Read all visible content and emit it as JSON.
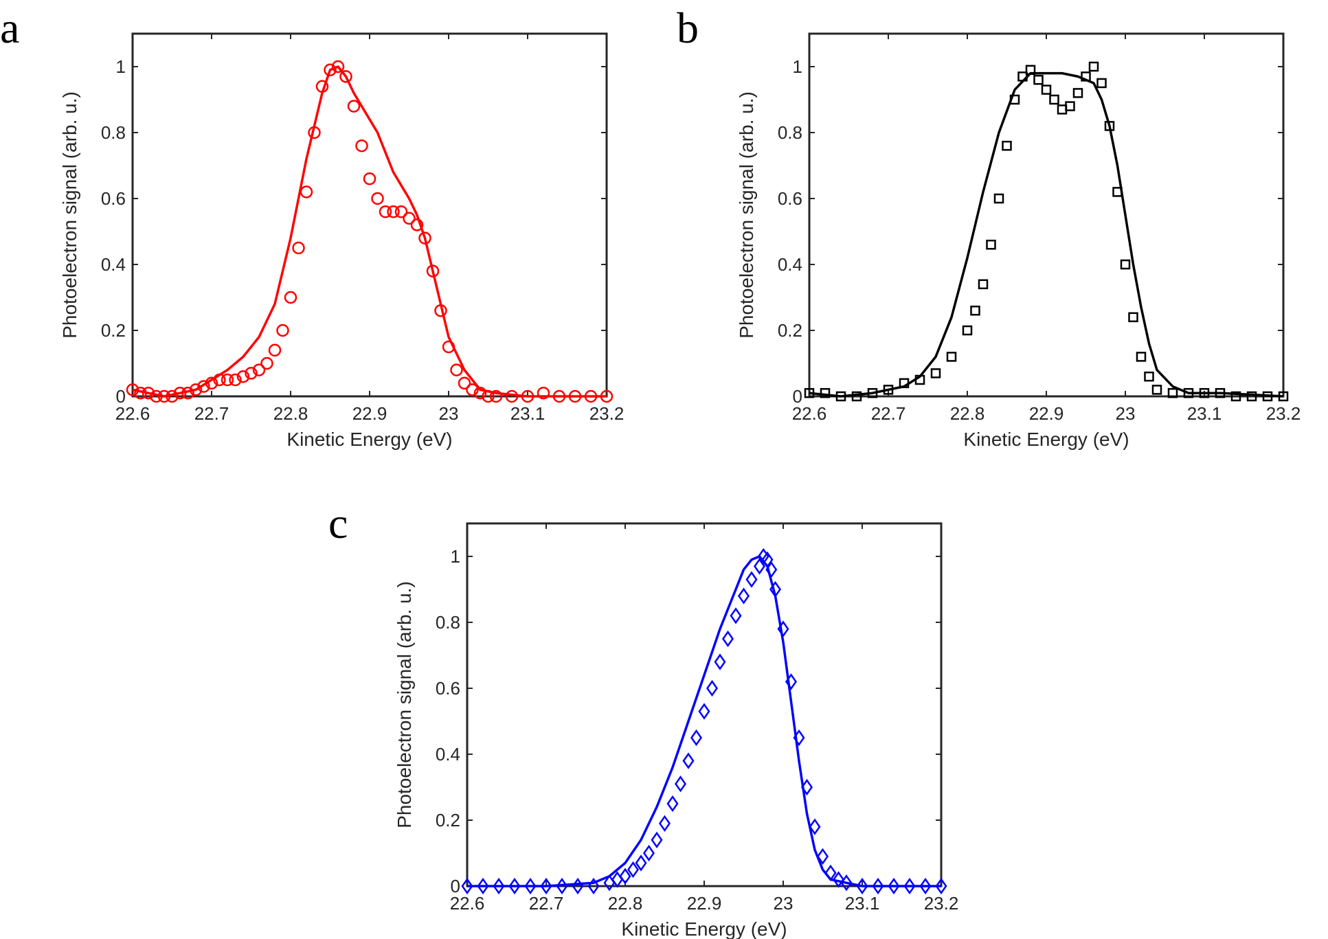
{
  "figure": {
    "panels": [
      "a",
      "b",
      "c"
    ]
  },
  "chart_data": [
    {
      "panel": "a",
      "type": "line",
      "color": "#ff0000",
      "marker": "circle",
      "xlabel": "Kinetic Energy (eV)",
      "ylabel": "Photoelectron signal (arb. u.)",
      "xlim": [
        22.6,
        23.2
      ],
      "ylim": [
        0,
        1.1
      ],
      "xticks": [
        22.6,
        22.7,
        22.8,
        22.9,
        23.0,
        23.1,
        23.2
      ],
      "xtick_labels": [
        "22.6",
        "22.7",
        "22.8",
        "22.9",
        "23",
        "23.1",
        "23.2"
      ],
      "yticks": [
        0,
        0.2,
        0.4,
        0.6,
        0.8,
        1.0
      ],
      "ytick_labels": [
        "0",
        "0.2",
        "0.4",
        "0.6",
        "0.8",
        "1"
      ],
      "series": [
        {
          "name": "line",
          "style": "line",
          "x": [
            22.6,
            22.62,
            22.64,
            22.66,
            22.68,
            22.7,
            22.72,
            22.74,
            22.76,
            22.78,
            22.8,
            22.82,
            22.84,
            22.85,
            22.86,
            22.87,
            22.88,
            22.89,
            22.9,
            22.91,
            22.92,
            22.93,
            22.94,
            22.95,
            22.96,
            22.97,
            22.98,
            22.99,
            23.0,
            23.02,
            23.04,
            23.06,
            23.1,
            23.2
          ],
          "y": [
            0.02,
            0.01,
            0.0,
            0.01,
            0.02,
            0.05,
            0.08,
            0.12,
            0.18,
            0.28,
            0.48,
            0.72,
            0.92,
            0.99,
            1.0,
            0.97,
            0.92,
            0.88,
            0.84,
            0.8,
            0.74,
            0.68,
            0.64,
            0.6,
            0.55,
            0.48,
            0.38,
            0.28,
            0.18,
            0.08,
            0.02,
            0.01,
            0.0,
            0.0
          ]
        },
        {
          "name": "circles",
          "style": "markers",
          "x": [
            22.6,
            22.61,
            22.62,
            22.63,
            22.64,
            22.65,
            22.66,
            22.67,
            22.68,
            22.69,
            22.7,
            22.71,
            22.72,
            22.73,
            22.74,
            22.75,
            22.76,
            22.77,
            22.78,
            22.79,
            22.8,
            22.81,
            22.82,
            22.83,
            22.84,
            22.85,
            22.86,
            22.87,
            22.88,
            22.89,
            22.9,
            22.91,
            22.92,
            22.93,
            22.94,
            22.95,
            22.96,
            22.97,
            22.98,
            22.99,
            23.0,
            23.01,
            23.02,
            23.03,
            23.04,
            23.05,
            23.06,
            23.08,
            23.1,
            23.12,
            23.14,
            23.16,
            23.18,
            23.2
          ],
          "y": [
            0.02,
            0.01,
            0.01,
            0.0,
            0.0,
            0.0,
            0.01,
            0.01,
            0.02,
            0.03,
            0.04,
            0.05,
            0.05,
            0.05,
            0.06,
            0.07,
            0.08,
            0.1,
            0.14,
            0.2,
            0.3,
            0.45,
            0.62,
            0.8,
            0.94,
            0.99,
            1.0,
            0.97,
            0.88,
            0.76,
            0.66,
            0.6,
            0.56,
            0.56,
            0.56,
            0.54,
            0.52,
            0.48,
            0.38,
            0.26,
            0.15,
            0.08,
            0.04,
            0.02,
            0.01,
            0.0,
            0.0,
            0.0,
            0.0,
            0.01,
            0.0,
            0.0,
            0.0,
            0.0
          ]
        }
      ]
    },
    {
      "panel": "b",
      "type": "line",
      "color": "#000000",
      "marker": "square",
      "xlabel": "Kinetic Energy (eV)",
      "ylabel": "Photoelectron signal (arb. u.)",
      "xlim": [
        22.6,
        23.2
      ],
      "ylim": [
        0,
        1.1
      ],
      "xticks": [
        22.6,
        22.7,
        22.8,
        22.9,
        23.0,
        23.1,
        23.2
      ],
      "xtick_labels": [
        "22.6",
        "22.7",
        "22.8",
        "22.9",
        "23",
        "23.1",
        "23.2"
      ],
      "yticks": [
        0,
        0.2,
        0.4,
        0.6,
        0.8,
        1.0
      ],
      "ytick_labels": [
        "0",
        "0.2",
        "0.4",
        "0.6",
        "0.8",
        "1"
      ],
      "series": [
        {
          "name": "line",
          "style": "line",
          "x": [
            22.6,
            22.64,
            22.68,
            22.72,
            22.74,
            22.76,
            22.78,
            22.8,
            22.82,
            22.84,
            22.86,
            22.88,
            22.9,
            22.92,
            22.94,
            22.96,
            22.97,
            22.98,
            22.99,
            23.0,
            23.01,
            23.02,
            23.03,
            23.04,
            23.06,
            23.08,
            23.12,
            23.2
          ],
          "y": [
            0.01,
            0.0,
            0.01,
            0.03,
            0.06,
            0.12,
            0.24,
            0.42,
            0.62,
            0.8,
            0.93,
            0.98,
            0.98,
            0.98,
            0.97,
            0.95,
            0.9,
            0.82,
            0.7,
            0.55,
            0.4,
            0.27,
            0.16,
            0.08,
            0.03,
            0.01,
            0.01,
            0.0
          ]
        },
        {
          "name": "squares",
          "style": "markers",
          "x": [
            22.6,
            22.62,
            22.64,
            22.66,
            22.68,
            22.7,
            22.72,
            22.74,
            22.76,
            22.78,
            22.8,
            22.81,
            22.82,
            22.83,
            22.84,
            22.85,
            22.86,
            22.87,
            22.88,
            22.89,
            22.9,
            22.91,
            22.92,
            22.93,
            22.94,
            22.95,
            22.96,
            22.97,
            22.98,
            22.99,
            23.0,
            23.01,
            23.02,
            23.03,
            23.04,
            23.06,
            23.08,
            23.1,
            23.12,
            23.14,
            23.16,
            23.18,
            23.2
          ],
          "y": [
            0.01,
            0.01,
            0.0,
            0.0,
            0.01,
            0.02,
            0.04,
            0.05,
            0.07,
            0.12,
            0.2,
            0.26,
            0.34,
            0.46,
            0.6,
            0.76,
            0.9,
            0.97,
            0.99,
            0.96,
            0.93,
            0.9,
            0.87,
            0.88,
            0.92,
            0.97,
            1.0,
            0.95,
            0.82,
            0.62,
            0.4,
            0.24,
            0.12,
            0.06,
            0.02,
            0.01,
            0.01,
            0.01,
            0.01,
            0.0,
            0.0,
            0.0,
            0.0
          ]
        }
      ]
    },
    {
      "panel": "c",
      "type": "line",
      "color": "#0000ff",
      "marker": "diamond",
      "xlabel": "Kinetic Energy (eV)",
      "ylabel": "Photoelectron signal (arb. u.)",
      "xlim": [
        22.6,
        23.2
      ],
      "ylim": [
        0,
        1.1
      ],
      "xticks": [
        22.6,
        22.7,
        22.8,
        22.9,
        23.0,
        23.1,
        23.2
      ],
      "xtick_labels": [
        "22.6",
        "22.7",
        "22.8",
        "22.9",
        "23",
        "23.1",
        "23.2"
      ],
      "yticks": [
        0,
        0.2,
        0.4,
        0.6,
        0.8,
        1.0
      ],
      "ytick_labels": [
        "0",
        "0.2",
        "0.4",
        "0.6",
        "0.8",
        "1"
      ],
      "series": [
        {
          "name": "line",
          "style": "line",
          "x": [
            22.6,
            22.7,
            22.76,
            22.78,
            22.8,
            22.82,
            22.84,
            22.86,
            22.88,
            22.9,
            22.92,
            22.94,
            22.95,
            22.96,
            22.97,
            22.98,
            22.99,
            23.0,
            23.01,
            23.02,
            23.03,
            23.04,
            23.05,
            23.06,
            23.08,
            23.1,
            23.2
          ],
          "y": [
            0.0,
            0.0,
            0.01,
            0.03,
            0.07,
            0.14,
            0.24,
            0.36,
            0.5,
            0.64,
            0.78,
            0.9,
            0.96,
            0.99,
            1.0,
            0.97,
            0.88,
            0.74,
            0.56,
            0.38,
            0.22,
            0.11,
            0.05,
            0.02,
            0.01,
            0.0,
            0.0
          ]
        },
        {
          "name": "diamonds",
          "style": "markers",
          "x": [
            22.6,
            22.62,
            22.64,
            22.66,
            22.68,
            22.7,
            22.72,
            22.74,
            22.76,
            22.78,
            22.79,
            22.8,
            22.81,
            22.82,
            22.83,
            22.84,
            22.85,
            22.86,
            22.87,
            22.88,
            22.89,
            22.9,
            22.91,
            22.92,
            22.93,
            22.94,
            22.95,
            22.96,
            22.97,
            22.975,
            22.98,
            22.985,
            22.99,
            23.0,
            23.01,
            23.02,
            23.03,
            23.04,
            23.05,
            23.06,
            23.07,
            23.08,
            23.1,
            23.12,
            23.14,
            23.16,
            23.18,
            23.2
          ],
          "y": [
            0.0,
            0.0,
            0.0,
            0.0,
            0.0,
            0.0,
            0.0,
            0.0,
            0.0,
            0.01,
            0.02,
            0.03,
            0.05,
            0.07,
            0.1,
            0.14,
            0.19,
            0.25,
            0.31,
            0.38,
            0.45,
            0.53,
            0.6,
            0.68,
            0.75,
            0.82,
            0.88,
            0.93,
            0.97,
            1.0,
            0.99,
            0.96,
            0.9,
            0.78,
            0.62,
            0.45,
            0.3,
            0.18,
            0.09,
            0.04,
            0.02,
            0.01,
            0.0,
            0.0,
            0.0,
            0.0,
            0.0,
            0.0
          ]
        }
      ]
    }
  ]
}
